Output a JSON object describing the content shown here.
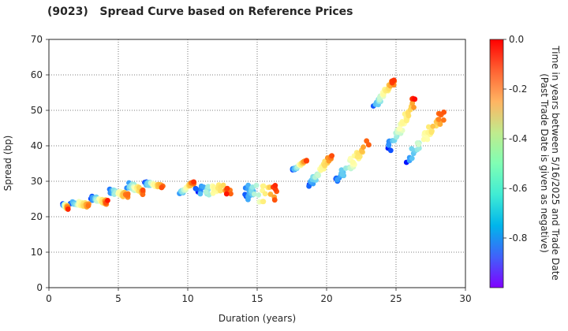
{
  "chart_data": {
    "type": "scatter",
    "title": "(9023)   Spread Curve based on Reference Prices",
    "xlabel": "Duration (years)",
    "ylabel": "Spread (bp)",
    "xlim": [
      0,
      30
    ],
    "ylim": [
      0,
      70
    ],
    "xticks": [
      "0",
      "5",
      "10",
      "15",
      "20",
      "25",
      "30"
    ],
    "yticks": [
      "0",
      "10",
      "20",
      "30",
      "40",
      "50",
      "60",
      "70"
    ],
    "grid": true,
    "colorbar": {
      "label": "Time in years between 5/16/2025 and Trade Date\n(Past Trade Date is given as negative)",
      "range": [
        -1.0,
        0.0
      ],
      "ticks": [
        "0.0",
        "-0.2",
        "-0.4",
        "-0.6",
        "-0.8"
      ],
      "colormap": "rainbow"
    },
    "clusters": [
      {
        "x": [
          1.0,
          1.4
        ],
        "y": [
          21,
          24
        ],
        "trend": 1
      },
      {
        "x": [
          1.5,
          3.0
        ],
        "y": [
          21,
          25
        ],
        "trend": 0.5
      },
      {
        "x": [
          3.0,
          4.3
        ],
        "y": [
          22,
          26
        ],
        "trend": 0.5
      },
      {
        "x": [
          4.3,
          5.8
        ],
        "y": [
          24,
          28
        ],
        "trend": 0.5
      },
      {
        "x": [
          5.5,
          7.0
        ],
        "y": [
          24,
          30
        ],
        "trend": 0.6
      },
      {
        "x": [
          6.8,
          8.3
        ],
        "y": [
          27,
          30
        ],
        "trend": 0.3
      },
      {
        "x": [
          9.3,
          10.5
        ],
        "y": [
          26,
          30
        ],
        "trend": -0.5
      },
      {
        "x": [
          10.5,
          13.2
        ],
        "y": [
          26,
          29
        ],
        "trend": 0
      },
      {
        "x": [
          14.0,
          16.5
        ],
        "y": [
          24,
          29
        ],
        "trend": 0
      },
      {
        "x": [
          17.5,
          18.6
        ],
        "y": [
          33,
          36
        ],
        "trend": -0.5
      },
      {
        "x": [
          18.6,
          20.5
        ],
        "y": [
          28,
          38
        ],
        "trend": -1
      },
      {
        "x": [
          20.5,
          23.3
        ],
        "y": [
          29,
          42
        ],
        "trend": -1
      },
      {
        "x": [
          23.2,
          25.0
        ],
        "y": [
          50,
          59
        ],
        "trend": -1
      },
      {
        "x": [
          24.3,
          26.5
        ],
        "y": [
          38,
          54
        ],
        "trend": -1
      },
      {
        "x": [
          25.5,
          28.6
        ],
        "y": [
          34,
          50
        ],
        "trend": -1
      }
    ]
  }
}
